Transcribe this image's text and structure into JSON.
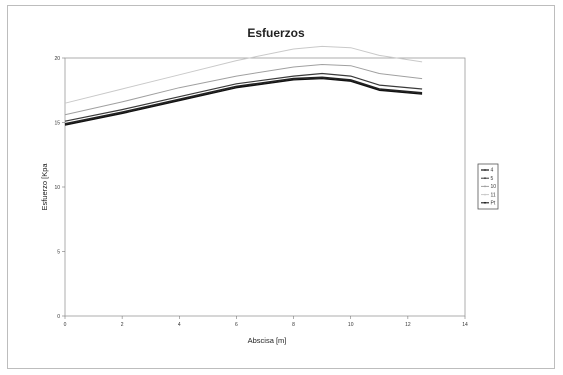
{
  "chart_data": {
    "type": "line",
    "title": "Esfuerzos",
    "xlabel": "Abscisa [m]",
    "ylabel": "Esfuerzo [Kpa",
    "xlim": [
      0,
      14
    ],
    "ylim": [
      0,
      20
    ],
    "xticks": [
      0,
      2,
      4,
      6,
      8,
      10,
      12,
      14
    ],
    "yticks": [
      0,
      5,
      10,
      15,
      20
    ],
    "grid": false,
    "legend_position": "right",
    "x": [
      0,
      2,
      4,
      6,
      8,
      9,
      10,
      11,
      12.5
    ],
    "series": [
      {
        "name": "4",
        "color": "#222222",
        "width": 1.6,
        "values": [
          14.9,
          15.8,
          16.8,
          17.8,
          18.4,
          18.5,
          18.3,
          17.6,
          17.3
        ]
      },
      {
        "name": "5",
        "color": "#3a3a3a",
        "width": 1.2,
        "values": [
          15.1,
          16.0,
          17.0,
          18.0,
          18.6,
          18.8,
          18.6,
          17.9,
          17.6
        ]
      },
      {
        "name": "10",
        "color": "#a0a0a0",
        "width": 1.0,
        "values": [
          15.6,
          16.6,
          17.7,
          18.6,
          19.3,
          19.5,
          19.4,
          18.8,
          18.4
        ]
      },
      {
        "name": "11",
        "color": "#c9c9c9",
        "width": 1.0,
        "values": [
          16.5,
          17.6,
          18.7,
          19.8,
          20.7,
          20.9,
          20.8,
          20.2,
          19.7
        ]
      },
      {
        "name": "Pt",
        "color": "#111111",
        "width": 1.3,
        "values": [
          14.8,
          15.7,
          16.7,
          17.7,
          18.3,
          18.4,
          18.2,
          17.5,
          17.2
        ]
      }
    ]
  }
}
